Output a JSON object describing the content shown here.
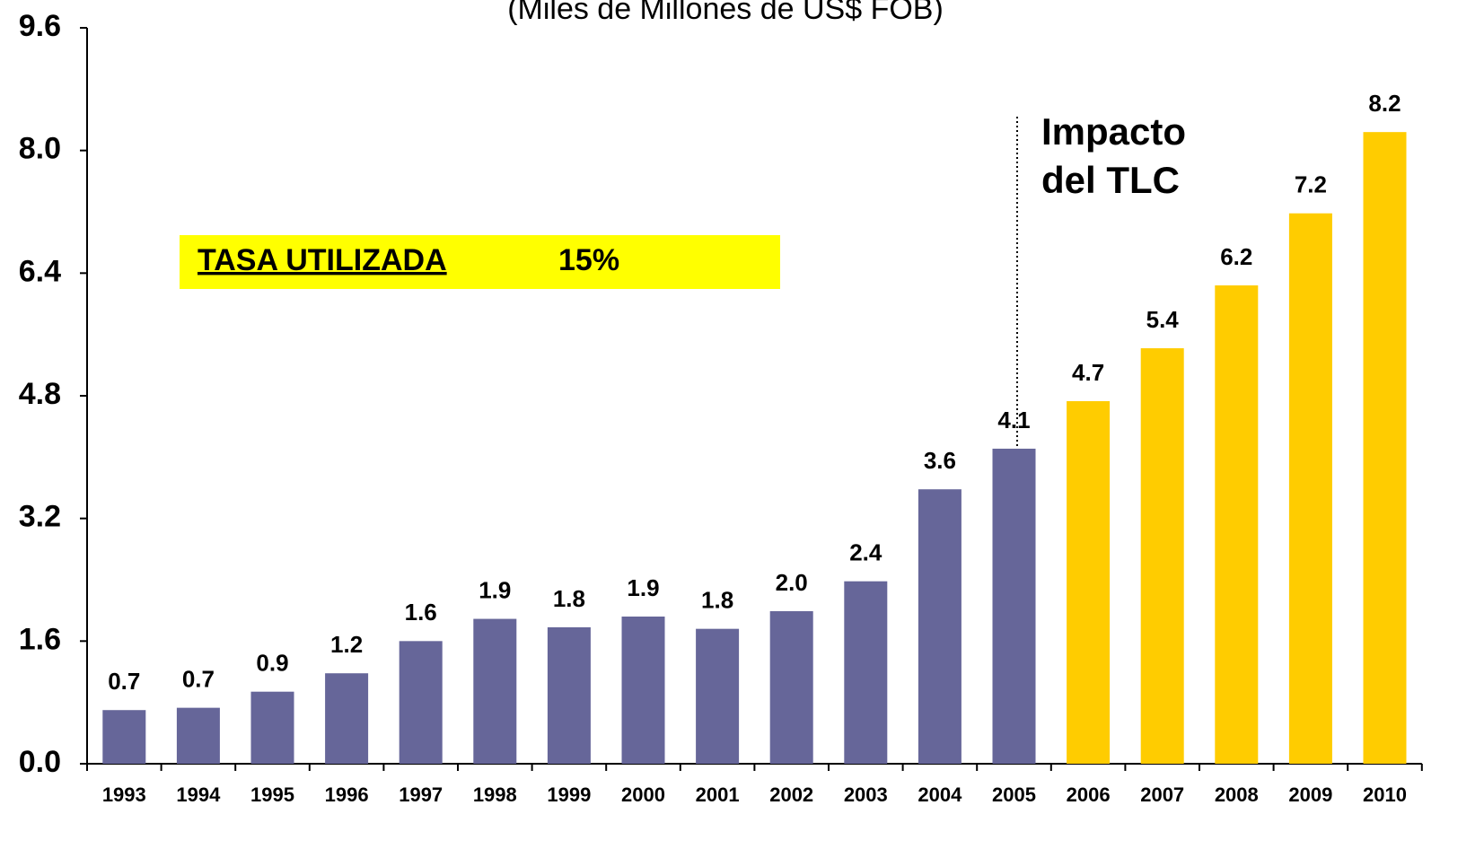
{
  "chart_data": {
    "type": "bar",
    "subtitle": "(Miles de Millones de US$ FOB)",
    "categories": [
      "1993",
      "1994",
      "1995",
      "1996",
      "1997",
      "1998",
      "1999",
      "2000",
      "2001",
      "2002",
      "2003",
      "2004",
      "2005",
      "2006",
      "2007",
      "2008",
      "2009",
      "2010"
    ],
    "values": [
      0.7,
      0.73,
      0.94,
      1.18,
      1.6,
      1.89,
      1.78,
      1.92,
      1.76,
      1.99,
      2.38,
      3.58,
      4.11,
      4.73,
      5.42,
      6.24,
      7.18,
      8.24
    ],
    "value_labels": [
      "0.7",
      "0.7",
      "0.9",
      "1.2",
      "1.6",
      "1.9",
      "1.8",
      "1.9",
      "1.8",
      "2.0",
      "2.4",
      "3.6",
      "4.1",
      "4.7",
      "5.4",
      "6.2",
      "7.2",
      "8.2"
    ],
    "colors": [
      "#666699",
      "#666699",
      "#666699",
      "#666699",
      "#666699",
      "#666699",
      "#666699",
      "#666699",
      "#666699",
      "#666699",
      "#666699",
      "#666699",
      "#666699",
      "#ffcc00",
      "#ffcc00",
      "#ffcc00",
      "#ffcc00",
      "#ffcc00"
    ],
    "ylim": [
      0,
      9.6
    ],
    "yticks": [
      {
        "value": 0,
        "label": "0.0"
      },
      1.6,
      3.2,
      4.8,
      6.4,
      {
        "value": 8,
        "label": "8.0"
      },
      9.6
    ],
    "annotation": [
      "Impacto",
      "del TLC"
    ],
    "rate_box": {
      "label": "TASA UTILIZADA",
      "value": "15%"
    }
  }
}
